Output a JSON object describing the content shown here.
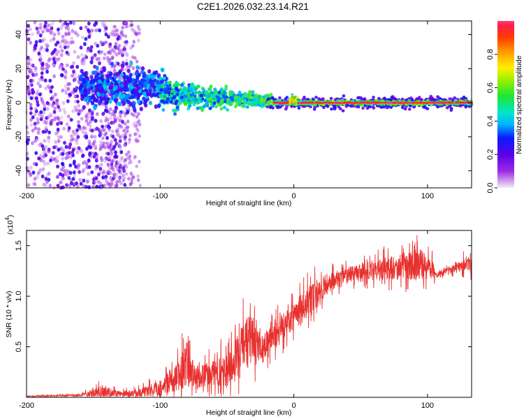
{
  "title": "C2E1.2026.032.23.14.R21",
  "colors": {
    "snr_line": "#e8312f",
    "frame": "#000000"
  },
  "chart_data": [
    {
      "type": "heatmap",
      "xlabel": "Height of straight line (km)",
      "ylabel": "Frequency (Hz)",
      "xlim": [
        -200,
        133
      ],
      "ylim": [
        -50,
        48
      ],
      "x_ticks": [
        -200,
        -100,
        0,
        100
      ],
      "x_tick_labels": [
        "-200",
        "-100",
        "0",
        "100"
      ],
      "y_ticks": [
        -40,
        -20,
        0,
        20,
        40
      ],
      "y_tick_labels": [
        "-40",
        "-20",
        "0",
        "20",
        "40"
      ],
      "colorbar": {
        "label": "Normalized spectral amplitude",
        "range": [
          0,
          1
        ],
        "ticks": [
          0,
          0.2,
          0.4,
          0.6,
          0.8
        ],
        "tick_labels": [
          "0.0",
          "0.2",
          "0.4",
          "0.6",
          "0.8"
        ],
        "colormap": "rainbow (white-lavender → purple → blue → cyan → green → yellow → orange → red)"
      },
      "features": [
        {
          "region": "x -200 to -100",
          "description": "broad diffuse scatter across full frequency band, amplitude 0.1-0.3"
        },
        {
          "region": "x -160 to -90",
          "frequency_hz": [
            0,
            20
          ],
          "description": "concentrated band near 5-15 Hz, amplitude 0.2-0.5"
        },
        {
          "region": "x -100 to -20",
          "frequency_hz": [
            -3,
            8
          ],
          "description": "narrowing band converging toward 0 Hz, amplitude 0.3-0.6"
        },
        {
          "region": "x -20 to 133",
          "frequency_hz": [
            -1.5,
            1.5
          ],
          "description": "narrow band at 0 Hz, core amplitude ~0.9-1.0"
        }
      ]
    },
    {
      "type": "line",
      "xlabel": "Height of straight line (km)",
      "ylabel": "SNR (10 * v/v)",
      "y_multiplier_label": "(x10",
      "y_multiplier_exponent": "4",
      "y_multiplier_close": ")",
      "xlim": [
        -200,
        133
      ],
      "ylim": [
        0,
        1.65
      ],
      "x_ticks": [
        -200,
        -100,
        0,
        100
      ],
      "x_tick_labels": [
        "-200",
        "-100",
        "0",
        "100"
      ],
      "y_ticks": [
        0.5,
        1.0,
        1.5
      ],
      "y_tick_labels": [
        "0.5",
        "1.0",
        "1.5"
      ],
      "series": [
        {
          "color": "#e8312f",
          "envelope_points": [
            {
              "x": -200,
              "base": 0.01,
              "noise": 0.01
            },
            {
              "x": -160,
              "base": 0.02,
              "noise": 0.02
            },
            {
              "x": -145,
              "base": 0.05,
              "noise": 0.12
            },
            {
              "x": -130,
              "base": 0.03,
              "noise": 0.06
            },
            {
              "x": -115,
              "base": 0.04,
              "noise": 0.08
            },
            {
              "x": -100,
              "base": 0.09,
              "noise": 0.15
            },
            {
              "x": -90,
              "base": 0.15,
              "noise": 0.25
            },
            {
              "x": -80,
              "base": 0.3,
              "noise": 0.45
            },
            {
              "x": -74,
              "base": 0.18,
              "noise": 0.25
            },
            {
              "x": -60,
              "base": 0.22,
              "noise": 0.25
            },
            {
              "x": -45,
              "base": 0.3,
              "noise": 0.4
            },
            {
              "x": -38,
              "base": 0.5,
              "noise": 0.45
            },
            {
              "x": -33,
              "base": 0.55,
              "noise": 0.55
            },
            {
              "x": -25,
              "base": 0.45,
              "noise": 0.25
            },
            {
              "x": -15,
              "base": 0.6,
              "noise": 0.3
            },
            {
              "x": -5,
              "base": 0.75,
              "noise": 0.3
            },
            {
              "x": 5,
              "base": 0.85,
              "noise": 0.3
            },
            {
              "x": 15,
              "base": 0.98,
              "noise": 0.3
            },
            {
              "x": 25,
              "base": 1.12,
              "noise": 0.2
            },
            {
              "x": 40,
              "base": 1.2,
              "noise": 0.15
            },
            {
              "x": 60,
              "base": 1.25,
              "noise": 0.2
            },
            {
              "x": 80,
              "base": 1.27,
              "noise": 0.25
            },
            {
              "x": 95,
              "base": 1.3,
              "noise": 0.3
            },
            {
              "x": 104,
              "base": 1.28,
              "noise": 0.25
            },
            {
              "x": 106,
              "base": 1.2,
              "noise": 0.05
            },
            {
              "x": 115,
              "base": 1.25,
              "noise": 0.06
            },
            {
              "x": 125,
              "base": 1.3,
              "noise": 0.12
            },
            {
              "x": 133,
              "base": 1.32,
              "noise": 0.18
            }
          ]
        }
      ]
    }
  ]
}
